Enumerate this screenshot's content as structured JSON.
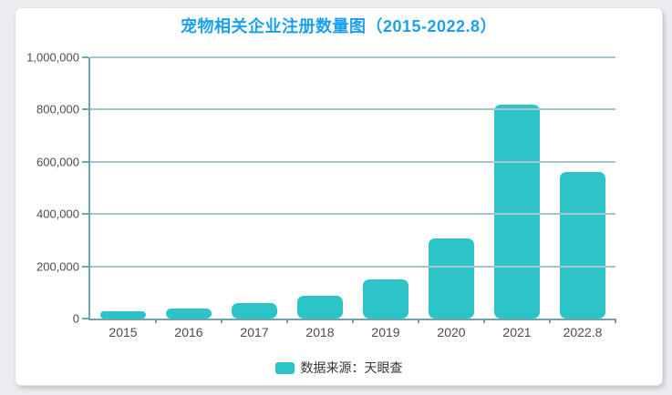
{
  "title": "宠物相关企业注册数量图（2015-2022.8）",
  "legend": {
    "label": "数据来源：天眼查"
  },
  "colors": {
    "bar": "#2DC4C8",
    "axis": "#6FA3AE",
    "gridline": "#A8C4CE",
    "title": "#1B9FF0",
    "tick_label": "#4D4D4D",
    "legend_text": "#333333",
    "page_background": "#EAECEF",
    "card_background": "#FFFFFF"
  },
  "chart_data": {
    "type": "bar",
    "title": "宠物相关企业注册数量图（2015-2022.8）",
    "categories": [
      "2015",
      "2016",
      "2017",
      "2018",
      "2019",
      "2020",
      "2021",
      "2022.8"
    ],
    "values": [
      28000,
      40000,
      60000,
      88000,
      150000,
      305000,
      820000,
      560000
    ],
    "xlabel": "",
    "ylabel": "",
    "ylim": [
      0,
      1000000
    ],
    "ytick_interval": 200000,
    "ytick_labels": [
      "0",
      "200,000",
      "400,000",
      "600,000",
      "800,000",
      "1,000,000"
    ],
    "grid": true,
    "legend": {
      "label": "数据来源：天眼查",
      "position": "bottom"
    }
  }
}
